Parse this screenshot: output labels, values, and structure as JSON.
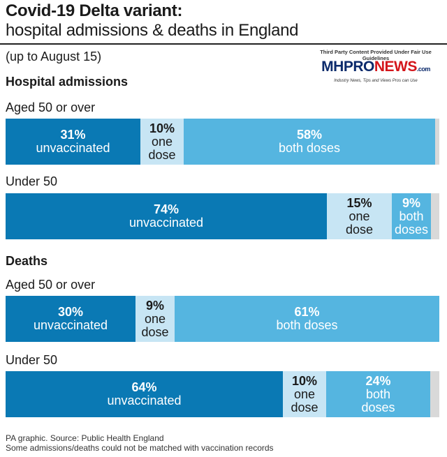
{
  "title_bold": "Covid-19 Delta variant:",
  "title_sub": "hospital admissions & deaths in England",
  "subtitle": "(up to August 15)",
  "logo": {
    "top_text": "Third Party Content Provided Under Fair Use Guidelines",
    "brand_part1": "MHPRO",
    "brand_part2": "NEWS",
    "brand_suffix": ".com",
    "tagline": "Industry News, Tips and Views Pros can Use"
  },
  "colors": {
    "unvaccinated": "#0a79b4",
    "one_dose": "#c7e5f4",
    "both_doses": "#55b5e0"
  },
  "footer_line1": "PA graphic. Source: Public Health England",
  "footer_line2": "Some admissions/deaths could not be matched with vaccination records",
  "chart_data": {
    "type": "bar",
    "stacked": "100% horizontal",
    "sections": [
      {
        "name": "Hospital admissions",
        "groups": [
          {
            "name": "Aged 50 or over",
            "segments": [
              {
                "key": "unvaccinated",
                "value": 31,
                "pct": "31%",
                "label_lines": [
                  "unvaccinated"
                ]
              },
              {
                "key": "one_dose",
                "value": 10,
                "pct": "10%",
                "label_lines": [
                  "one",
                  "dose"
                ]
              },
              {
                "key": "both_doses",
                "value": 58,
                "pct": "58%",
                "label_lines": [
                  "both doses"
                ]
              }
            ]
          },
          {
            "name": "Under 50",
            "segments": [
              {
                "key": "unvaccinated",
                "value": 74,
                "pct": "74%",
                "label_lines": [
                  "unvaccinated"
                ]
              },
              {
                "key": "one_dose",
                "value": 15,
                "pct": "15%",
                "label_lines": [
                  "one",
                  "dose"
                ]
              },
              {
                "key": "both_doses",
                "value": 9,
                "pct": "9%",
                "label_lines": [
                  "both",
                  "doses"
                ]
              }
            ]
          }
        ]
      },
      {
        "name": "Deaths",
        "groups": [
          {
            "name": "Aged 50 or over",
            "segments": [
              {
                "key": "unvaccinated",
                "value": 30,
                "pct": "30%",
                "label_lines": [
                  "unvaccinated"
                ]
              },
              {
                "key": "one_dose",
                "value": 9,
                "pct": "9%",
                "label_lines": [
                  "one",
                  "dose"
                ]
              },
              {
                "key": "both_doses",
                "value": 61,
                "pct": "61%",
                "label_lines": [
                  "both doses"
                ]
              }
            ]
          },
          {
            "name": "Under 50",
            "segments": [
              {
                "key": "unvaccinated",
                "value": 64,
                "pct": "64%",
                "label_lines": [
                  "unvaccinated"
                ]
              },
              {
                "key": "one_dose",
                "value": 10,
                "pct": "10%",
                "label_lines": [
                  "one",
                  "dose"
                ]
              },
              {
                "key": "both_doses",
                "value": 24,
                "pct": "24%",
                "label_lines": [
                  "both",
                  "doses"
                ]
              }
            ]
          }
        ]
      }
    ]
  }
}
